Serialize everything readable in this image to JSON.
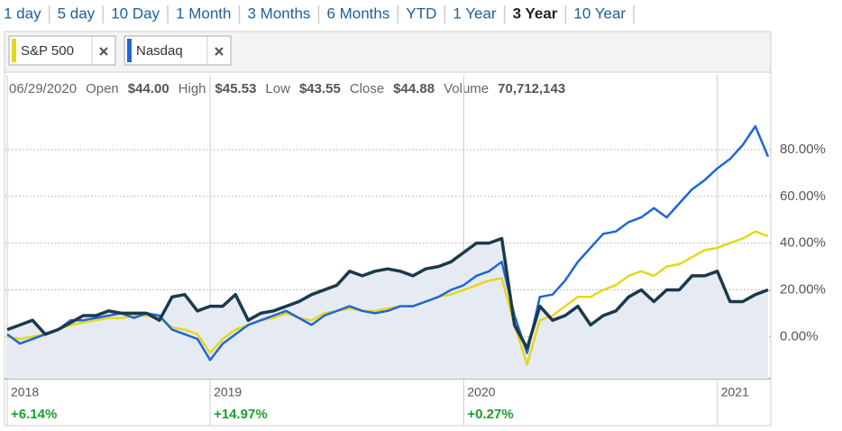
{
  "tabs": {
    "items": [
      "1 day",
      "5 day",
      "10 Day",
      "1 Month",
      "3 Months",
      "6 Months",
      "YTD",
      "1 Year",
      "3 Year",
      "10 Year"
    ],
    "selected": 8
  },
  "info": {
    "date": "06/29/2020",
    "items": [
      {
        "label": "Open",
        "value": "$44.00"
      },
      {
        "label": "High",
        "value": "$45.53"
      },
      {
        "label": "Low",
        "value": "$43.55"
      },
      {
        "label": "Close",
        "value": "$44.88"
      },
      {
        "label": "Volume",
        "value": "70,712,143"
      }
    ]
  },
  "chart_data": {
    "type": "line",
    "categories": [
      "2018",
      null,
      null,
      null,
      null,
      null,
      null,
      null,
      null,
      null,
      null,
      null,
      null,
      null,
      null,
      null,
      "2019",
      null,
      null,
      null,
      null,
      null,
      null,
      null,
      null,
      null,
      null,
      null,
      null,
      null,
      null,
      null,
      null,
      null,
      null,
      null,
      "2020",
      null,
      null,
      null,
      null,
      null,
      null,
      null,
      null,
      null,
      null,
      null,
      null,
      null,
      null,
      null,
      null,
      null,
      null,
      null,
      "2021",
      null,
      null,
      null,
      null
    ],
    "annotations": [
      "+6.14%",
      "+14.97%",
      "+0.27%"
    ],
    "series": [
      {
        "name": "S&P 500",
        "color": "#e3d81d",
        "values": [
          0,
          -1,
          0,
          1,
          3,
          5,
          6,
          7,
          8,
          8,
          9,
          9,
          8,
          4,
          3,
          1,
          -7,
          -1,
          3,
          5,
          7,
          8,
          10,
          8,
          7,
          10,
          11,
          12,
          11,
          11,
          12,
          13,
          13,
          15,
          17,
          18,
          20,
          22,
          24,
          25,
          5,
          -12,
          7,
          9,
          13,
          17,
          17,
          20,
          22,
          26,
          28,
          26,
          30,
          31,
          34,
          37,
          38,
          40,
          42,
          45,
          43
        ]
      },
      {
        "name": "Nasdaq",
        "color": "#1f66d6",
        "values": [
          1,
          -3,
          -1,
          1,
          3,
          7,
          7,
          8,
          9,
          10,
          8,
          10,
          9,
          3,
          1,
          -1,
          -10,
          -3,
          1,
          5,
          7,
          9,
          11,
          8,
          5,
          9,
          11,
          13,
          11,
          10,
          11,
          13,
          13,
          15,
          17,
          20,
          22,
          26,
          28,
          32,
          9,
          -7,
          17,
          18,
          24,
          32,
          38,
          44,
          45,
          49,
          51,
          55,
          51,
          57,
          63,
          67,
          72,
          76,
          82,
          90,
          77
        ]
      },
      {
        "color": "#1b3a4b",
        "values": [
          3,
          5,
          7,
          1,
          3,
          6,
          9,
          9,
          11,
          10,
          10,
          10,
          7,
          17,
          18,
          11,
          13,
          13,
          18,
          7,
          10,
          11,
          13,
          15,
          18,
          20,
          22,
          28,
          26,
          28,
          29,
          28,
          26,
          29,
          30,
          32,
          36,
          40,
          40,
          42,
          5,
          -5,
          13,
          7,
          9,
          13,
          5,
          9,
          11,
          17,
          20,
          15,
          20,
          20,
          26,
          26,
          28,
          15,
          15,
          18,
          20
        ]
      }
    ],
    "area_color": "#e6ebf3",
    "ylim": [
      -18,
      112
    ],
    "yticks": [
      {
        "value": 0,
        "label": "0.00%"
      },
      {
        "value": 20,
        "label": "20.00%"
      },
      {
        "value": 40,
        "label": "40.00%"
      },
      {
        "value": 60,
        "label": "60.00%"
      },
      {
        "value": 80,
        "label": "80.00%"
      }
    ],
    "grid": true
  }
}
